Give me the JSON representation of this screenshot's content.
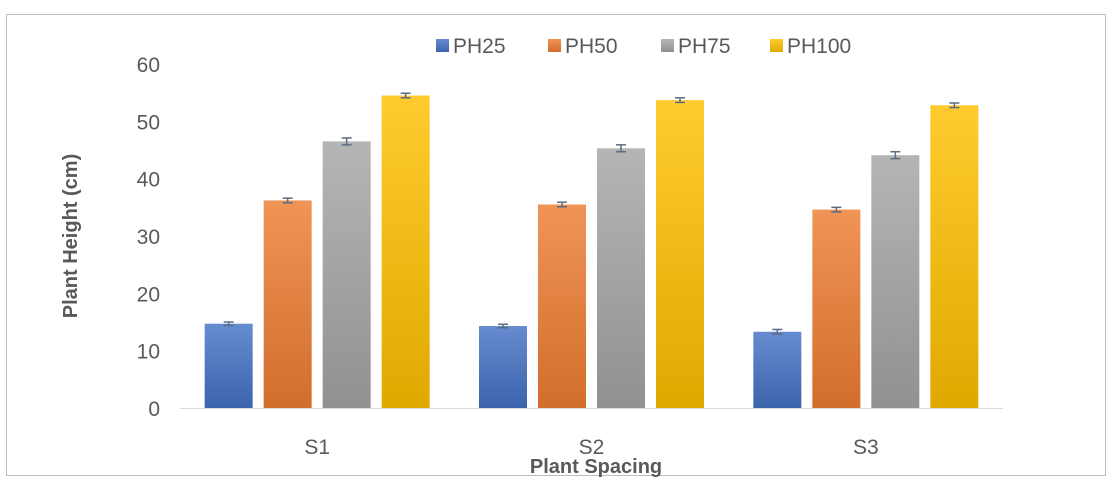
{
  "chart_data": {
    "type": "bar",
    "title": "",
    "xlabel": "Plant Spacing",
    "ylabel": "Plant Height (cm)",
    "ylim": [
      0,
      60
    ],
    "yticks": [
      0,
      10,
      20,
      30,
      40,
      50,
      60
    ],
    "grid": false,
    "legend_position": "top",
    "error_bars": true,
    "categories": [
      "S1",
      "S2",
      "S3"
    ],
    "series": [
      {
        "name": "PH25",
        "values": [
          14.7,
          14.3,
          13.3
        ],
        "errors": [
          0.3,
          0.3,
          0.4
        ],
        "color": "#4472c4"
      },
      {
        "name": "PH50",
        "values": [
          36.2,
          35.5,
          34.6
        ],
        "errors": [
          0.4,
          0.4,
          0.4
        ],
        "color": "#ed7d31"
      },
      {
        "name": "PH75",
        "values": [
          46.5,
          45.3,
          44.1
        ],
        "errors": [
          0.6,
          0.6,
          0.6
        ],
        "color": "#a5a5a5"
      },
      {
        "name": "PH100",
        "values": [
          54.5,
          53.7,
          52.8
        ],
        "errors": [
          0.4,
          0.4,
          0.4
        ],
        "color": "#ffc000"
      }
    ]
  }
}
